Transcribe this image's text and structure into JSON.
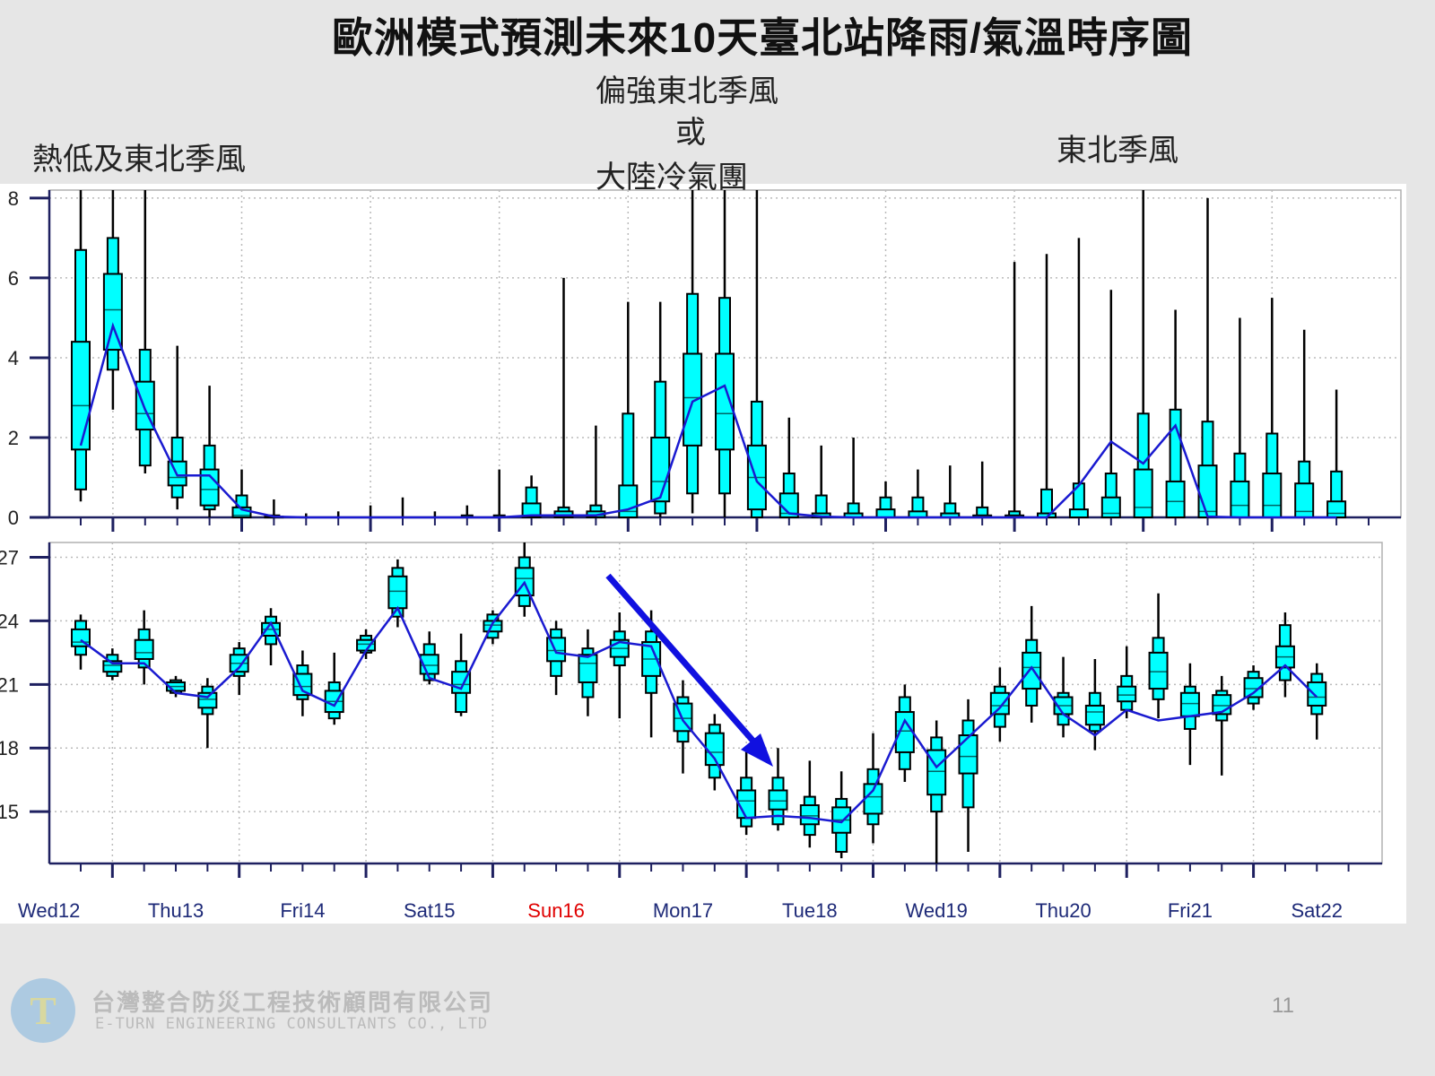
{
  "slide": {
    "title": "歐洲模式預測未來10天臺北站降雨/氣溫時序圖",
    "page_number": "11",
    "company_name_cn": "台灣整合防災工程技術顧問有限公司",
    "company_name_en": "E-TURN ENGINEERING CONSULTANTS CO., LTD",
    "annotations": {
      "left": "熱低及東北季風",
      "middle_line1": "偏強東北季風",
      "middle_line2": "或",
      "middle_line3": "大陸冷氣團",
      "right": "東北季風"
    },
    "arrow_color": "#1010e0"
  },
  "chart_data": [
    {
      "type": "boxplot",
      "quantity": "precipitation",
      "ylim": [
        0,
        8.2
      ],
      "yticks": [
        "0",
        "2",
        "4",
        "6",
        "8"
      ],
      "grid": true,
      "box_color": "#00ffff",
      "mean_line_color": "#1a1ad0",
      "box_fields": [
        "min",
        "p10",
        "p25",
        "median",
        "p75",
        "p90",
        "max"
      ],
      "boxes": [
        [
          0.4,
          0.7,
          1.7,
          2.8,
          4.4,
          6.7,
          9
        ],
        [
          2.7,
          3.7,
          4.2,
          5.2,
          6.1,
          7.0,
          9
        ],
        [
          1.1,
          1.3,
          2.2,
          2.6,
          3.4,
          4.2,
          9
        ],
        [
          0.2,
          0.5,
          0.8,
          1.0,
          1.4,
          2.0,
          4.3
        ],
        [
          0,
          0.2,
          0.3,
          0.7,
          1.2,
          1.8,
          3.3
        ],
        [
          0,
          0,
          0,
          0.05,
          0.25,
          0.55,
          1.2
        ],
        [
          0,
          0,
          0,
          0,
          0.02,
          0.05,
          0.45
        ],
        [
          0,
          0,
          0,
          0,
          0,
          0,
          0.1
        ],
        [
          0,
          0,
          0,
          0,
          0,
          0,
          0.15
        ],
        [
          0,
          0,
          0,
          0,
          0,
          0,
          0.3
        ],
        [
          0,
          0,
          0,
          0,
          0,
          0,
          0.5
        ],
        [
          0,
          0,
          0,
          0,
          0,
          0,
          0.15
        ],
        [
          0,
          0,
          0,
          0,
          0,
          0.05,
          0.3
        ],
        [
          0,
          0,
          0,
          0,
          0,
          0.05,
          1.2
        ],
        [
          0,
          0,
          0,
          0.05,
          0.35,
          0.75,
          1.05
        ],
        [
          0,
          0,
          0,
          0.05,
          0.15,
          0.25,
          6.0
        ],
        [
          0,
          0,
          0,
          0.05,
          0.15,
          0.3,
          2.3
        ],
        [
          0,
          0,
          0,
          0.15,
          0.8,
          2.6,
          5.4
        ],
        [
          0,
          0.1,
          0.4,
          0.9,
          2.0,
          3.4,
          5.4
        ],
        [
          0.1,
          0.6,
          1.8,
          3.0,
          4.1,
          5.6,
          9
        ],
        [
          0,
          0.6,
          1.7,
          2.6,
          4.1,
          5.5,
          9
        ],
        [
          0,
          0,
          0.2,
          1.0,
          1.8,
          2.9,
          9
        ],
        [
          0,
          0,
          0,
          0.1,
          0.6,
          1.1,
          2.5
        ],
        [
          0,
          0,
          0,
          0,
          0.1,
          0.55,
          1.8
        ],
        [
          0,
          0,
          0,
          0,
          0.1,
          0.35,
          2.0
        ],
        [
          0,
          0,
          0,
          0,
          0.2,
          0.5,
          0.9
        ],
        [
          0,
          0,
          0,
          0,
          0.15,
          0.5,
          1.2
        ],
        [
          0,
          0,
          0,
          0,
          0.1,
          0.35,
          1.3
        ],
        [
          0,
          0,
          0,
          0,
          0.05,
          0.25,
          1.4
        ],
        [
          0,
          0,
          0,
          0,
          0.05,
          0.15,
          6.4
        ],
        [
          0,
          0,
          0,
          0,
          0.1,
          0.7,
          6.6
        ],
        [
          0,
          0,
          0,
          0,
          0.2,
          0.85,
          7.0
        ],
        [
          0,
          0,
          0,
          0.1,
          0.5,
          1.1,
          5.7
        ],
        [
          0,
          0,
          0,
          0.25,
          1.2,
          2.6,
          9
        ],
        [
          0,
          0,
          0,
          0.4,
          0.9,
          2.7,
          5.2
        ],
        [
          0,
          0,
          0,
          0.15,
          1.3,
          2.4,
          8.0
        ],
        [
          0,
          0,
          0,
          0.3,
          0.9,
          1.6,
          5.0
        ],
        [
          0,
          0,
          0,
          0.3,
          1.1,
          2.1,
          5.5
        ],
        [
          0,
          0,
          0,
          0.15,
          0.85,
          1.4,
          4.7
        ],
        [
          0,
          0,
          0,
          0.1,
          0.4,
          1.15,
          3.2
        ]
      ],
      "mean": [
        1.8,
        4.8,
        2.7,
        1.05,
        1.05,
        0.2,
        0.02,
        0,
        0,
        0,
        0,
        0,
        0,
        0,
        0.05,
        0.05,
        0.05,
        0.2,
        0.5,
        2.9,
        3.3,
        0.9,
        0.1,
        0.02,
        0,
        0,
        0,
        0,
        0,
        0,
        0,
        0.8,
        1.9,
        1.35,
        2.3,
        0.02,
        0,
        0,
        0,
        0
      ]
    },
    {
      "type": "boxplot",
      "quantity": "temperature",
      "ylim": [
        12.55,
        27.7
      ],
      "yticks": [
        "15",
        "18",
        "21",
        "24",
        "27"
      ],
      "grid": true,
      "box_color": "#00ffff",
      "mean_line_color": "#1a1ad0",
      "box_fields": [
        "min",
        "p10",
        "p25",
        "median",
        "p75",
        "p90",
        "max"
      ],
      "boxes": [
        [
          21.7,
          22.4,
          22.8,
          23.0,
          23.6,
          24.0,
          24.3
        ],
        [
          21.2,
          21.4,
          21.6,
          21.9,
          22.1,
          22.4,
          22.7
        ],
        [
          21.0,
          21.8,
          22.2,
          22.5,
          23.1,
          23.6,
          24.5
        ],
        [
          20.4,
          20.6,
          20.7,
          20.9,
          21.1,
          21.2,
          21.4
        ],
        [
          18.0,
          19.6,
          19.9,
          20.3,
          20.6,
          20.9,
          21.3
        ],
        [
          20.5,
          21.4,
          21.6,
          22.0,
          22.4,
          22.7,
          23.0
        ],
        [
          21.9,
          22.9,
          23.3,
          23.6,
          23.9,
          24.2,
          24.6
        ],
        [
          19.5,
          20.3,
          20.5,
          20.9,
          21.5,
          21.9,
          22.6
        ],
        [
          19.1,
          19.4,
          19.7,
          20.2,
          20.7,
          21.1,
          22.5
        ],
        [
          22.2,
          22.5,
          22.6,
          22.9,
          23.1,
          23.3,
          23.6
        ],
        [
          23.7,
          24.2,
          24.6,
          25.4,
          26.1,
          26.5,
          26.9
        ],
        [
          21.0,
          21.2,
          21.5,
          21.9,
          22.4,
          22.9,
          23.5
        ],
        [
          19.5,
          19.7,
          20.6,
          21.0,
          21.6,
          22.1,
          23.4
        ],
        [
          22.9,
          23.2,
          23.5,
          23.8,
          24.0,
          24.3,
          24.5
        ],
        [
          24.2,
          24.7,
          25.2,
          26.0,
          26.5,
          27.0,
          27.8
        ],
        [
          20.5,
          21.4,
          22.1,
          22.6,
          23.2,
          23.6,
          24.0
        ],
        [
          19.5,
          20.4,
          21.1,
          22.0,
          22.4,
          22.7,
          23.6
        ],
        [
          19.4,
          21.9,
          22.3,
          22.7,
          23.1,
          23.5,
          24.4
        ],
        [
          18.5,
          20.6,
          21.4,
          22.2,
          23.0,
          23.5,
          24.5
        ],
        [
          16.8,
          18.3,
          18.8,
          19.4,
          20.1,
          20.4,
          21.2
        ],
        [
          16.0,
          16.6,
          17.2,
          17.8,
          18.7,
          19.1,
          19.6
        ],
        [
          13.9,
          14.3,
          14.7,
          15.5,
          16.0,
          16.6,
          18.1
        ],
        [
          14.1,
          14.4,
          15.1,
          15.5,
          16.0,
          16.6,
          18.0
        ],
        [
          13.3,
          13.9,
          14.4,
          14.8,
          15.3,
          15.7,
          17.4
        ],
        [
          12.8,
          13.1,
          14.0,
          14.6,
          15.2,
          15.6,
          16.9
        ],
        [
          13.5,
          14.4,
          14.9,
          15.7,
          16.3,
          17.0,
          18.7
        ],
        [
          16.4,
          17.0,
          17.8,
          18.8,
          19.7,
          20.4,
          21.0
        ],
        [
          12.5,
          15.0,
          15.8,
          16.9,
          17.9,
          18.5,
          19.3
        ],
        [
          13.1,
          15.2,
          16.8,
          17.6,
          18.6,
          19.3,
          20.3
        ],
        [
          18.3,
          19.0,
          19.6,
          20.0,
          20.6,
          20.9,
          21.8
        ],
        [
          19.2,
          20.0,
          20.8,
          21.8,
          22.5,
          23.1,
          24.7
        ],
        [
          18.5,
          19.1,
          19.6,
          20.0,
          20.4,
          20.6,
          22.3
        ],
        [
          17.9,
          18.8,
          19.1,
          19.7,
          20.0,
          20.6,
          22.2
        ],
        [
          19.4,
          19.8,
          20.2,
          20.5,
          20.9,
          21.4,
          22.8
        ],
        [
          19.4,
          20.3,
          20.8,
          21.6,
          22.5,
          23.2,
          25.3
        ],
        [
          17.2,
          18.9,
          19.5,
          20.1,
          20.6,
          20.9,
          22.0
        ],
        [
          16.7,
          19.3,
          19.6,
          20.0,
          20.5,
          20.7,
          21.4
        ],
        [
          19.8,
          20.1,
          20.4,
          20.8,
          21.3,
          21.6,
          21.9
        ],
        [
          20.4,
          21.2,
          21.8,
          22.3,
          22.8,
          23.8,
          24.4
        ],
        [
          18.4,
          19.6,
          20.0,
          20.4,
          21.1,
          21.5,
          22.0
        ]
      ],
      "mean": [
        23.1,
        22.0,
        22.0,
        20.6,
        20.4,
        21.8,
        23.9,
        20.7,
        20.0,
        22.6,
        24.6,
        21.3,
        20.8,
        23.9,
        25.8,
        22.5,
        22.3,
        23.0,
        22.8,
        19.3,
        17.5,
        14.7,
        14.8,
        14.7,
        14.5,
        16.0,
        19.3,
        17.1,
        18.5,
        19.9,
        21.8,
        19.6,
        18.6,
        19.8,
        19.3,
        19.5,
        19.7,
        20.6,
        21.9,
        20.4
      ]
    }
  ],
  "x_axis": {
    "day_labels": [
      "Wed12",
      "Thu13",
      "Fri14",
      "Sat15",
      "Sun16",
      "Mon17",
      "Tue18",
      "Wed19",
      "Thu20",
      "Fri21",
      "Sat22"
    ],
    "label_color": "#1e2a78",
    "weekend_highlight": {
      "label": "Sun16",
      "color": "#e00000"
    }
  }
}
